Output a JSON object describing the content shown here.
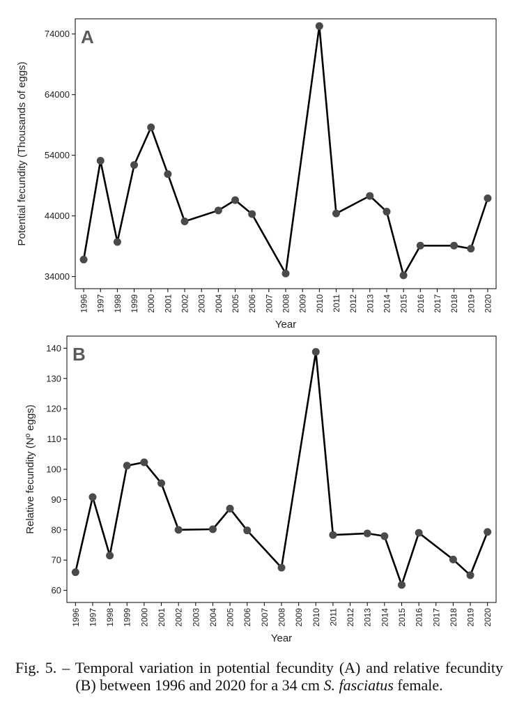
{
  "chart_data": [
    {
      "type": "line",
      "panel": "A",
      "ylabel": "Potential fecundity (Thousands of eggs)",
      "xlabel": "Year",
      "ylim": [
        32000,
        76500
      ],
      "yticks": [
        34000,
        44000,
        54000,
        64000,
        74000
      ],
      "categories": [
        "1996",
        "1997",
        "1998",
        "1999",
        "2000",
        "2001",
        "2002",
        "2003",
        "2004",
        "2005",
        "2006",
        "2007",
        "2008",
        "2009",
        "2010",
        "2011",
        "2012",
        "2013",
        "2014",
        "2015",
        "2016",
        "2017",
        "2018",
        "2019",
        "2020"
      ],
      "points": [
        {
          "x": "1996",
          "y": 36800
        },
        {
          "x": "1997",
          "y": 53100
        },
        {
          "x": "1998",
          "y": 39700
        },
        {
          "x": "1999",
          "y": 52400
        },
        {
          "x": "2000",
          "y": 58600
        },
        {
          "x": "2001",
          "y": 50900
        },
        {
          "x": "2002",
          "y": 43100
        },
        {
          "x": "2004",
          "y": 44900
        },
        {
          "x": "2005",
          "y": 46600
        },
        {
          "x": "2006",
          "y": 44300
        },
        {
          "x": "2008",
          "y": 34500
        },
        {
          "x": "2010",
          "y": 75300
        },
        {
          "x": "2011",
          "y": 44400
        },
        {
          "x": "2013",
          "y": 47300
        },
        {
          "x": "2014",
          "y": 44700
        },
        {
          "x": "2015",
          "y": 34200
        },
        {
          "x": "2016",
          "y": 39100
        },
        {
          "x": "2018",
          "y": 39100
        },
        {
          "x": "2019",
          "y": 38600
        },
        {
          "x": "2020",
          "y": 46900
        }
      ],
      "grid": false,
      "legend": "none"
    },
    {
      "type": "line",
      "panel": "B",
      "ylabel": "Relative fecundity (Nº eggs)",
      "xlabel": "Year",
      "ylim": [
        56,
        144
      ],
      "yticks": [
        60,
        70,
        80,
        90,
        100,
        110,
        120,
        130,
        140
      ],
      "categories": [
        "1996",
        "1997",
        "1998",
        "1999",
        "2000",
        "2001",
        "2002",
        "2003",
        "2004",
        "2005",
        "2006",
        "2007",
        "2008",
        "2009",
        "2010",
        "2011",
        "2012",
        "2013",
        "2014",
        "2015",
        "2016",
        "2017",
        "2018",
        "2019",
        "2020"
      ],
      "points": [
        {
          "x": "1996",
          "y": 66
        },
        {
          "x": "1997",
          "y": 90.8
        },
        {
          "x": "1998",
          "y": 71.5
        },
        {
          "x": "1999",
          "y": 101.2
        },
        {
          "x": "2000",
          "y": 102.3
        },
        {
          "x": "2001",
          "y": 95.4
        },
        {
          "x": "2002",
          "y": 80
        },
        {
          "x": "2004",
          "y": 80.2
        },
        {
          "x": "2005",
          "y": 87
        },
        {
          "x": "2006",
          "y": 79.8
        },
        {
          "x": "2008",
          "y": 67.5
        },
        {
          "x": "2010",
          "y": 138.8
        },
        {
          "x": "2011",
          "y": 78.3
        },
        {
          "x": "2013",
          "y": 78.8
        },
        {
          "x": "2014",
          "y": 77.9
        },
        {
          "x": "2015",
          "y": 61.8
        },
        {
          "x": "2016",
          "y": 79
        },
        {
          "x": "2018",
          "y": 70.2
        },
        {
          "x": "2019",
          "y": 65
        },
        {
          "x": "2020",
          "y": 79.3
        }
      ],
      "grid": false,
      "legend": "none"
    }
  ],
  "caption": {
    "prefix": "Fig. 5. – Temporal variation in potential fecundity (A) and relative fecundity (B) between 1996 and 2020 for a 34 cm ",
    "species": "S. fasciatus",
    "suffix": " female."
  }
}
